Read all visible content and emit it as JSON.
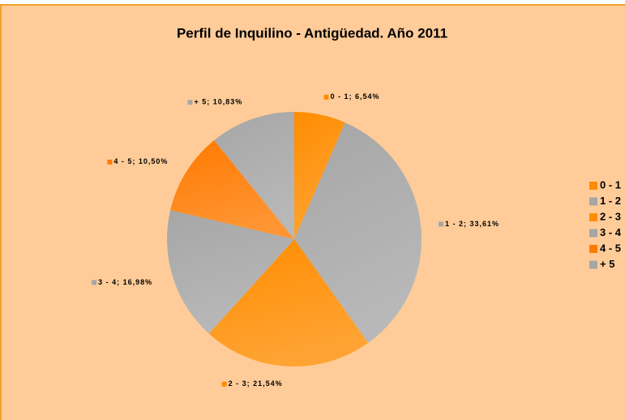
{
  "chart_data": {
    "type": "pie",
    "title": "Perfil de Inquilino - Antigüedad. Año 2011",
    "categories": [
      "0 - 1",
      "1 - 2",
      "2 - 3",
      "3 - 4",
      "4 - 5",
      "+ 5"
    ],
    "values": [
      6.54,
      33.61,
      21.54,
      16.98,
      10.5,
      10.83
    ],
    "value_labels": [
      "0 - 1; 6,54%",
      "1 - 2; 33,61%",
      "2 - 3; 21,54%",
      "3 - 4; 16,98%",
      "4 - 5; 10,50%",
      "+ 5; 10,83%"
    ],
    "colors": [
      "#ff8c00",
      "#a6a6a6",
      "#ff8c00",
      "#a6a6a6",
      "#ff7a00",
      "#a6a6a6"
    ],
    "legend": "right"
  }
}
